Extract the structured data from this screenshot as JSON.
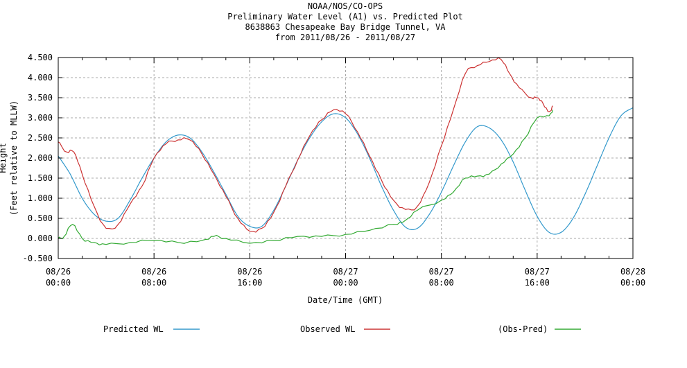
{
  "chart_data": {
    "type": "line",
    "title_lines": [
      "NOAA/NOS/CO-OPS",
      "Preliminary  Water Level (A1) vs. Predicted Plot",
      "8638863 Chesapeake Bay Bridge Tunnel, VA",
      "from 2011/08/26 - 2011/08/27"
    ],
    "xlabel": "Date/Time (GMT)",
    "ylabel_lines": [
      "Height",
      "(Feet relative to MLLW)"
    ],
    "xlim": [
      "2011-08-26 00:00",
      "2011-08-28 00:00"
    ],
    "ylim": [
      -0.5,
      4.5
    ],
    "yticks": [
      "-0.500",
      "0.000",
      "0.500",
      "1.000",
      "1.500",
      "2.000",
      "2.500",
      "3.000",
      "3.500",
      "4.000",
      "4.500"
    ],
    "xticks": [
      {
        "date": "08/26",
        "time": "00:00"
      },
      {
        "date": "08/26",
        "time": "08:00"
      },
      {
        "date": "08/26",
        "time": "16:00"
      },
      {
        "date": "08/27",
        "time": "00:00"
      },
      {
        "date": "08/27",
        "time": "08:00"
      },
      {
        "date": "08/27",
        "time": "16:00"
      },
      {
        "date": "08/28",
        "time": "00:00"
      }
    ],
    "grid": true,
    "legend_position": "bottom",
    "series": [
      {
        "name": "Predicted WL",
        "color": "#3399cc",
        "points": [
          [
            "2011-08-26 00:00",
            2.05
          ],
          [
            "2011-08-26 01:00",
            1.6
          ],
          [
            "2011-08-26 02:00",
            1.0
          ],
          [
            "2011-08-26 03:00",
            0.6
          ],
          [
            "2011-08-26 04:00",
            0.43
          ],
          [
            "2011-08-26 05:00",
            0.5
          ],
          [
            "2011-08-26 06:00",
            0.95
          ],
          [
            "2011-08-26 07:00",
            1.5
          ],
          [
            "2011-08-26 08:00",
            2.0
          ],
          [
            "2011-08-26 09:00",
            2.4
          ],
          [
            "2011-08-26 10:00",
            2.57
          ],
          [
            "2011-08-26 11:00",
            2.5
          ],
          [
            "2011-08-26 12:00",
            2.15
          ],
          [
            "2011-08-26 13:00",
            1.65
          ],
          [
            "2011-08-26 14:00",
            1.1
          ],
          [
            "2011-08-26 15:00",
            0.55
          ],
          [
            "2011-08-26 16:00",
            0.3
          ],
          [
            "2011-08-26 17:00",
            0.3
          ],
          [
            "2011-08-26 18:00",
            0.7
          ],
          [
            "2011-08-26 19:00",
            1.3
          ],
          [
            "2011-08-26 20:00",
            1.95
          ],
          [
            "2011-08-26 21:00",
            2.5
          ],
          [
            "2011-08-26 22:00",
            2.9
          ],
          [
            "2011-08-26 23:00",
            3.1
          ],
          [
            "2011-08-27 00:00",
            3.0
          ],
          [
            "2011-08-27 01:00",
            2.6
          ],
          [
            "2011-08-27 02:00",
            2.0
          ],
          [
            "2011-08-27 03:00",
            1.3
          ],
          [
            "2011-08-27 04:00",
            0.7
          ],
          [
            "2011-08-27 05:00",
            0.28
          ],
          [
            "2011-08-27 06:00",
            0.25
          ],
          [
            "2011-08-27 07:00",
            0.6
          ],
          [
            "2011-08-27 08:00",
            1.15
          ],
          [
            "2011-08-27 09:00",
            1.8
          ],
          [
            "2011-08-27 10:00",
            2.4
          ],
          [
            "2011-08-27 11:00",
            2.78
          ],
          [
            "2011-08-27 12:00",
            2.75
          ],
          [
            "2011-08-27 13:00",
            2.45
          ],
          [
            "2011-08-27 14:00",
            1.9
          ],
          [
            "2011-08-27 15:00",
            1.2
          ],
          [
            "2011-08-27 16:00",
            0.55
          ],
          [
            "2011-08-27 17:00",
            0.15
          ],
          [
            "2011-08-27 18:00",
            0.15
          ],
          [
            "2011-08-27 19:00",
            0.5
          ],
          [
            "2011-08-27 20:00",
            1.1
          ],
          [
            "2011-08-27 21:00",
            1.8
          ],
          [
            "2011-08-27 22:00",
            2.5
          ],
          [
            "2011-08-27 23:00",
            3.05
          ],
          [
            "2011-08-28 00:00",
            3.25
          ]
        ]
      },
      {
        "name": "Observed WL",
        "color": "#cc3333",
        "points": [
          [
            "2011-08-26 00:00",
            2.4
          ],
          [
            "2011-08-26 00:42",
            2.15
          ],
          [
            "2011-08-26 01:18",
            2.15
          ],
          [
            "2011-08-26 02:00",
            1.6
          ],
          [
            "2011-08-26 03:00",
            0.8
          ],
          [
            "2011-08-26 04:00",
            0.25
          ],
          [
            "2011-08-26 05:00",
            0.35
          ],
          [
            "2011-08-26 06:00",
            0.85
          ],
          [
            "2011-08-26 07:00",
            1.3
          ],
          [
            "2011-08-26 08:00",
            2.0
          ],
          [
            "2011-08-26 09:00",
            2.35
          ],
          [
            "2011-08-26 10:00",
            2.45
          ],
          [
            "2011-08-26 11:00",
            2.45
          ],
          [
            "2011-08-26 12:00",
            2.1
          ],
          [
            "2011-08-26 13:00",
            1.6
          ],
          [
            "2011-08-26 14:00",
            1.05
          ],
          [
            "2011-08-26 15:00",
            0.5
          ],
          [
            "2011-08-26 16:00",
            0.18
          ],
          [
            "2011-08-26 17:00",
            0.25
          ],
          [
            "2011-08-26 18:00",
            0.65
          ],
          [
            "2011-08-26 19:00",
            1.3
          ],
          [
            "2011-08-26 20:00",
            1.95
          ],
          [
            "2011-08-26 21:00",
            2.55
          ],
          [
            "2011-08-26 22:00",
            2.95
          ],
          [
            "2011-08-26 23:00",
            3.2
          ],
          [
            "2011-08-27 00:00",
            3.1
          ],
          [
            "2011-08-27 01:00",
            2.65
          ],
          [
            "2011-08-27 02:00",
            2.05
          ],
          [
            "2011-08-27 03:00",
            1.45
          ],
          [
            "2011-08-27 04:00",
            0.95
          ],
          [
            "2011-08-27 05:00",
            0.72
          ],
          [
            "2011-08-27 06:00",
            0.8
          ],
          [
            "2011-08-27 07:00",
            1.4
          ],
          [
            "2011-08-27 08:00",
            2.3
          ],
          [
            "2011-08-27 09:00",
            3.2
          ],
          [
            "2011-08-27 10:00",
            4.1
          ],
          [
            "2011-08-27 11:00",
            4.3
          ],
          [
            "2011-08-27 12:00",
            4.4
          ],
          [
            "2011-08-27 13:00",
            4.45
          ],
          [
            "2011-08-27 13:42",
            4.1
          ],
          [
            "2011-08-27 14:30",
            3.75
          ],
          [
            "2011-08-27 15:30",
            3.5
          ],
          [
            "2011-08-27 16:00",
            3.5
          ],
          [
            "2011-08-27 16:30",
            3.35
          ],
          [
            "2011-08-27 17:00",
            3.15
          ],
          [
            "2011-08-27 17:18",
            3.3
          ]
        ]
      },
      {
        "name": "(Obs-Pred)",
        "color": "#33aa33",
        "points": [
          [
            "2011-08-26 00:00",
            0.0
          ],
          [
            "2011-08-26 00:30",
            0.05
          ],
          [
            "2011-08-26 01:12",
            0.35
          ],
          [
            "2011-08-26 02:00",
            0.0
          ],
          [
            "2011-08-26 03:00",
            -0.1
          ],
          [
            "2011-08-26 04:00",
            -0.15
          ],
          [
            "2011-08-26 06:00",
            -0.1
          ],
          [
            "2011-08-26 08:00",
            -0.05
          ],
          [
            "2011-08-26 10:00",
            -0.1
          ],
          [
            "2011-08-26 12:00",
            -0.05
          ],
          [
            "2011-08-26 13:00",
            0.05
          ],
          [
            "2011-08-26 14:00",
            0.0
          ],
          [
            "2011-08-26 16:00",
            -0.12
          ],
          [
            "2011-08-26 18:00",
            -0.05
          ],
          [
            "2011-08-26 20:00",
            0.05
          ],
          [
            "2011-08-26 22:00",
            0.05
          ],
          [
            "2011-08-27 00:00",
            0.1
          ],
          [
            "2011-08-27 02:00",
            0.2
          ],
          [
            "2011-08-27 04:00",
            0.35
          ],
          [
            "2011-08-27 05:00",
            0.45
          ],
          [
            "2011-08-27 06:00",
            0.7
          ],
          [
            "2011-08-27 08:00",
            0.95
          ],
          [
            "2011-08-27 09:00",
            1.15
          ],
          [
            "2011-08-27 10:00",
            1.5
          ],
          [
            "2011-08-27 11:00",
            1.55
          ],
          [
            "2011-08-27 12:00",
            1.6
          ],
          [
            "2011-08-27 13:00",
            1.85
          ],
          [
            "2011-08-27 14:00",
            2.1
          ],
          [
            "2011-08-27 15:00",
            2.5
          ],
          [
            "2011-08-27 16:00",
            3.0
          ],
          [
            "2011-08-27 17:00",
            3.05
          ],
          [
            "2011-08-27 17:18",
            3.2
          ]
        ]
      }
    ]
  }
}
